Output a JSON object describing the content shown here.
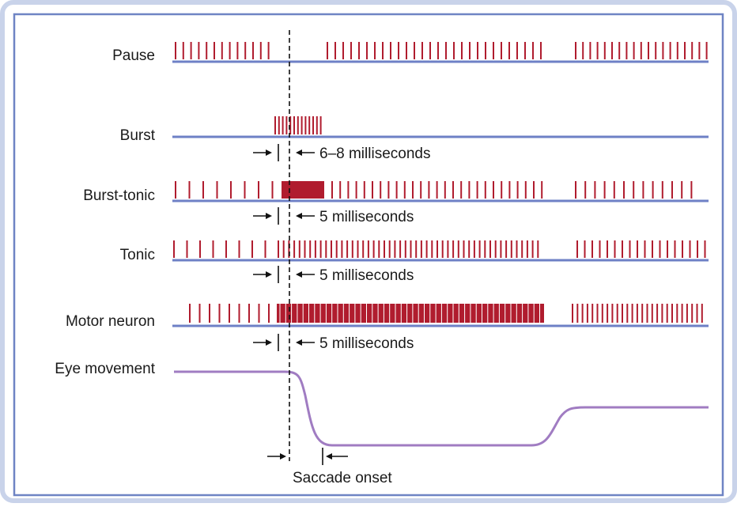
{
  "colors": {
    "frame_outer": "#c9d3ea",
    "frame_inner": "#6f84c4",
    "baseline": "#6e80c6",
    "spike": "#b01c2e",
    "eye_trace": "#a07cc2",
    "dashed": "#111111",
    "text": "#1a1a1a"
  },
  "rows": {
    "pause": {
      "label": "Pause"
    },
    "burst": {
      "label": "Burst"
    },
    "burst_tonic": {
      "label": "Burst-tonic"
    },
    "tonic": {
      "label": "Tonic"
    },
    "motor": {
      "label": "Motor neuron"
    },
    "eye": {
      "label": "Eye movement"
    }
  },
  "latency_annotations": {
    "burst": "6–8 milliseconds",
    "burst_tonic": "5 milliseconds",
    "tonic": "5 milliseconds",
    "motor": "5 milliseconds"
  },
  "saccade_label": "Saccade onset",
  "icons": [
    "right-arrow-icon",
    "left-arrow-icon"
  ]
}
